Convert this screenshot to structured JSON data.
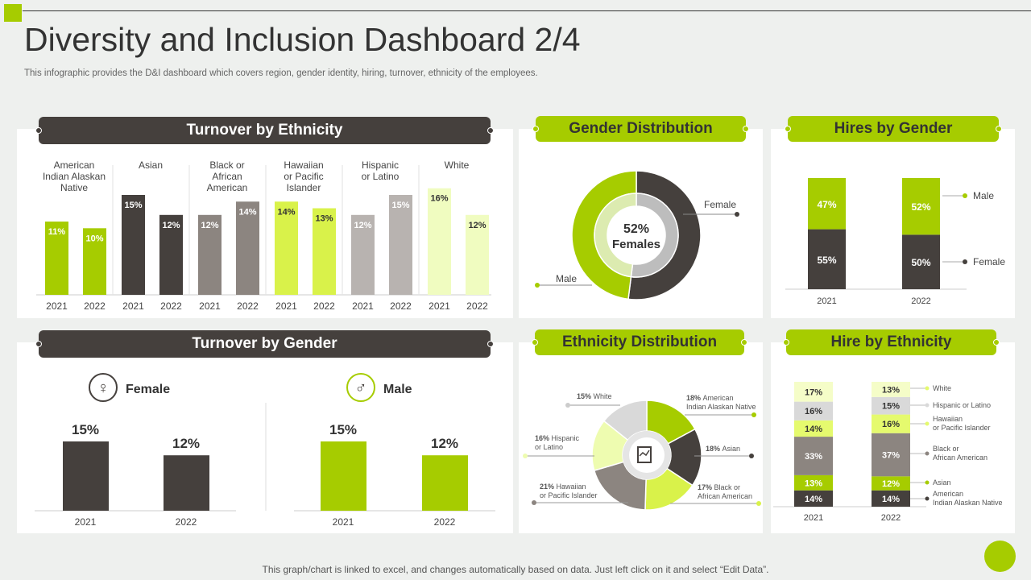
{
  "header": {
    "title": "Diversity and Inclusion Dashboard 2/4",
    "subtitle": "This infographic provides the D&I dashboard which covers region, gender identity, hiring, turnover,  ethnicity of the employees."
  },
  "footer": "This graph/chart is linked to excel,  and changes automatically based on data. Just left click on it and select “Edit Data”.",
  "colors": {
    "accent": "#a6cc00",
    "dark": "#45403d",
    "gray": "#8c8580",
    "light_gray": "#b8b3b0",
    "bright": "#d9f24a",
    "pale": "#f0fcc0",
    "silver": "#d9d9d9"
  },
  "panels": {
    "turnover_ethnicity": "Turnover by Ethnicity",
    "gender_distribution": "Gender Distribution",
    "hires_gender": "Hires by Gender",
    "turnover_gender": "Turnover by Gender",
    "ethnicity_distribution": "Ethnicity Distribution",
    "hire_ethnicity": "Hire by Ethnicity"
  },
  "chart_data": [
    {
      "id": "turnover_ethnicity",
      "type": "bar",
      "groups": [
        "American Indian Alaskan Native",
        "Asian",
        "Black or African American",
        "Hawaiian or Pacific Islander",
        "Hispanic or Latino",
        "White"
      ],
      "group_labels": [
        [
          "American",
          "Indian Alaskan",
          "Native"
        ],
        [
          "Asian"
        ],
        [
          "Black or",
          "African",
          "American"
        ],
        [
          "Hawaiian",
          "or Pacific",
          "Islander"
        ],
        [
          "Hispanic",
          "or Latino"
        ],
        [
          "White"
        ]
      ],
      "categories": [
        "2021",
        "2022"
      ],
      "values": [
        [
          11,
          10
        ],
        [
          15,
          12
        ],
        [
          12,
          14
        ],
        [
          14,
          13
        ],
        [
          12,
          15
        ],
        [
          16,
          12
        ]
      ],
      "data_labels": [
        [
          "11%",
          "10%"
        ],
        [
          "15%",
          "12%"
        ],
        [
          "12%",
          "14%"
        ],
        [
          "14%",
          "13%"
        ],
        [
          "12%",
          "15%"
        ],
        [
          "16%",
          "12%"
        ]
      ],
      "colors": [
        "#a6cc00",
        "#45403d",
        "#8c8580",
        "#d9f24a",
        "#b8b3b0",
        "#f0fcc0"
      ],
      "ylim": [
        0,
        18
      ]
    },
    {
      "id": "gender_distribution",
      "type": "pie",
      "donut": true,
      "slices": [
        {
          "name": "Female",
          "value": 52,
          "color": "#45403d"
        },
        {
          "name": "Male",
          "value": 48,
          "color": "#a6cc00"
        }
      ],
      "center_value": "52%",
      "center_label": "Females"
    },
    {
      "id": "hires_gender",
      "type": "bar",
      "stacked": true,
      "categories": [
        "2021",
        "2022"
      ],
      "series": [
        {
          "name": "Female",
          "values": [
            55,
            50
          ],
          "labels": [
            "55%",
            "50%"
          ],
          "color": "#45403d"
        },
        {
          "name": "Male",
          "values": [
            47,
            52
          ],
          "labels": [
            "47%",
            "52%"
          ],
          "color": "#a6cc00"
        }
      ],
      "legend": "right"
    },
    {
      "id": "turnover_gender",
      "type": "bar",
      "groups": [
        {
          "name": "Female",
          "categories": [
            "2021",
            "2022"
          ],
          "values": [
            15,
            12
          ],
          "labels": [
            "15%",
            "12%"
          ],
          "color": "#45403d"
        },
        {
          "name": "Male",
          "categories": [
            "2021",
            "2022"
          ],
          "values": [
            15,
            12
          ],
          "labels": [
            "15%",
            "12%"
          ],
          "color": "#a6cc00"
        }
      ],
      "ylim": [
        0,
        16
      ]
    },
    {
      "id": "ethnicity_distribution",
      "type": "pie",
      "donut": true,
      "slices": [
        {
          "name": "American Indian Alaskan Native",
          "lines": [
            "American",
            "Indian Alaskan Native"
          ],
          "value": 18,
          "label": "18%",
          "color": "#a6cc00"
        },
        {
          "name": "Asian",
          "lines": [
            "Asian"
          ],
          "value": 18,
          "label": "18%",
          "color": "#45403d"
        },
        {
          "name": "Black or African American",
          "lines": [
            "Black or",
            "African American"
          ],
          "value": 17,
          "label": "17%",
          "color": "#d9f24a"
        },
        {
          "name": "Hawaiian or Pacific Islander",
          "lines": [
            "Hawaiian",
            "or Pacific  Islander"
          ],
          "value": 21,
          "label": "21%",
          "color": "#8c8580"
        },
        {
          "name": "Hispanic or Latino",
          "lines": [
            "Hispanic",
            "or Latino"
          ],
          "value": 16,
          "label": "16%",
          "color": "#eefcb0"
        },
        {
          "name": "White",
          "lines": [
            "White"
          ],
          "value": 15,
          "label": "15%",
          "color": "#d9d9d9"
        }
      ]
    },
    {
      "id": "hire_ethnicity",
      "type": "bar",
      "stacked": true,
      "categories": [
        "2021",
        "2022"
      ],
      "series": [
        {
          "name": "American Indian Alaskan Native",
          "lines": [
            "American",
            "Indian Alaskan Native"
          ],
          "values": [
            14,
            14
          ],
          "labels": [
            "14%",
            "14%"
          ],
          "color": "#45403d",
          "text": "#fff"
        },
        {
          "name": "Asian",
          "lines": [
            "Asian"
          ],
          "values": [
            13,
            12
          ],
          "labels": [
            "13%",
            "12%"
          ],
          "color": "#a6cc00",
          "text": "#fff"
        },
        {
          "name": "Black or African American",
          "lines": [
            "Black or",
            "African American"
          ],
          "values": [
            33,
            37
          ],
          "labels": [
            "33%",
            "37%"
          ],
          "color": "#8c8580",
          "text": "#fff"
        },
        {
          "name": "Hawaiian or Pacific Islander",
          "lines": [
            "Hawaiian",
            "or Pacific  Islander"
          ],
          "values": [
            14,
            16
          ],
          "labels": [
            "14%",
            "16%"
          ],
          "color": "#e5fa6e",
          "text": "#333"
        },
        {
          "name": "Hispanic or Latino",
          "lines": [
            "Hispanic or Latino"
          ],
          "values": [
            16,
            15
          ],
          "labels": [
            "16%",
            "15%"
          ],
          "color": "#d9d9d9",
          "text": "#333"
        },
        {
          "name": "White",
          "lines": [
            "White"
          ],
          "values": [
            17,
            13
          ],
          "labels": [
            "17%",
            "13%"
          ],
          "color": "#f5fdc8",
          "text": "#333"
        }
      ],
      "legend": "right"
    }
  ]
}
